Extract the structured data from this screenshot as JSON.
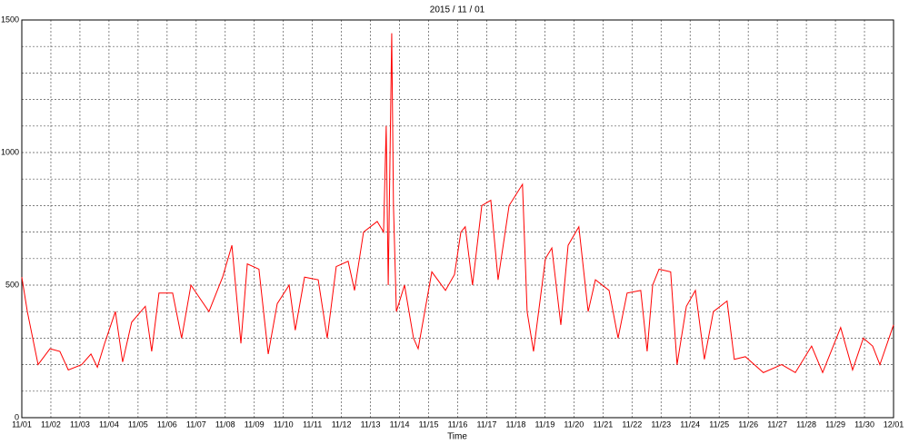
{
  "chart_data": {
    "type": "line",
    "title": "2015 / 11 / 01",
    "x_label": "Time",
    "x": [
      0,
      0.19,
      0.56,
      0.97,
      1.31,
      1.6,
      2.06,
      2.38,
      2.6,
      2.85,
      3.22,
      3.47,
      3.78,
      4.25,
      4.47,
      4.72,
      5.19,
      5.5,
      5.82,
      6.13,
      6.44,
      6.91,
      7.23,
      7.54,
      7.76,
      8.16,
      8.48,
      8.79,
      9.2,
      9.41,
      9.73,
      10.2,
      10.51,
      10.82,
      11.23,
      11.45,
      11.76,
      12.23,
      12.45,
      12.54,
      12.61,
      12.73,
      12.79,
      12.89,
      13.17,
      13.48,
      13.64,
      14.11,
      14.58,
      14.89,
      15.11,
      15.26,
      15.51,
      15.83,
      16.14,
      16.39,
      16.77,
      17.23,
      17.39,
      17.61,
      18.02,
      18.24,
      18.55,
      18.8,
      19.17,
      19.49,
      19.74,
      20.21,
      20.52,
      20.83,
      21.3,
      21.52,
      21.71,
      21.93,
      22.33,
      22.55,
      22.87,
      23.18,
      23.49,
      23.8,
      24.27,
      24.52,
      24.9,
      25.52,
      26.15,
      26.62,
      27.18,
      27.56,
      28.18,
      28.59,
      28.96,
      29.28,
      29.53,
      30
    ],
    "series": [
      {
        "name": "value",
        "color": "#ff0000",
        "values": [
          530,
          400,
          200,
          260,
          250,
          180,
          200,
          240,
          190,
          280,
          400,
          210,
          360,
          420,
          250,
          470,
          470,
          300,
          500,
          450,
          400,
          530,
          650,
          280,
          580,
          560,
          240,
          430,
          500,
          330,
          530,
          520,
          300,
          570,
          590,
          480,
          700,
          740,
          700,
          1100,
          500,
          1450,
          800,
          400,
          500,
          300,
          260,
          550,
          480,
          540,
          700,
          720,
          500,
          800,
          820,
          520,
          800,
          880,
          400,
          250,
          600,
          640,
          350,
          650,
          720,
          400,
          520,
          480,
          300,
          470,
          480,
          250,
          500,
          560,
          550,
          200,
          420,
          480,
          220,
          400,
          440,
          220,
          230,
          170,
          200,
          170,
          270,
          170,
          340,
          180,
          300,
          270,
          200,
          350
        ]
      }
    ],
    "xlim": [
      0,
      30
    ],
    "xticks": [
      {
        "value": 0,
        "label": "11/01"
      },
      {
        "value": 1,
        "label": "11/02"
      },
      {
        "value": 2,
        "label": "11/03"
      },
      {
        "value": 3,
        "label": "11/04"
      },
      {
        "value": 4,
        "label": "11/05"
      },
      {
        "value": 5,
        "label": "11/06"
      },
      {
        "value": 6,
        "label": "11/07"
      },
      {
        "value": 7,
        "label": "11/08"
      },
      {
        "value": 8,
        "label": "11/09"
      },
      {
        "value": 9,
        "label": "11/10"
      },
      {
        "value": 10,
        "label": "11/11"
      },
      {
        "value": 11,
        "label": "11/12"
      },
      {
        "value": 12,
        "label": "11/13"
      },
      {
        "value": 13,
        "label": "11/14"
      },
      {
        "value": 14,
        "label": "11/15"
      },
      {
        "value": 15,
        "label": "11/16"
      },
      {
        "value": 16,
        "label": "11/17"
      },
      {
        "value": 17,
        "label": "11/18"
      },
      {
        "value": 18,
        "label": "11/19"
      },
      {
        "value": 19,
        "label": "11/20"
      },
      {
        "value": 20,
        "label": "11/21"
      },
      {
        "value": 21,
        "label": "11/22"
      },
      {
        "value": 22,
        "label": "11/23"
      },
      {
        "value": 23,
        "label": "11/24"
      },
      {
        "value": 24,
        "label": "11/25"
      },
      {
        "value": 25,
        "label": "11/26"
      },
      {
        "value": 26,
        "label": "11/27"
      },
      {
        "value": 27,
        "label": "11/28"
      },
      {
        "value": 28,
        "label": "11/29"
      },
      {
        "value": 29,
        "label": "11/30"
      },
      {
        "value": 30,
        "label": "12/01"
      }
    ],
    "ylim": [
      0,
      1500
    ],
    "yticks": [
      0,
      500,
      1000,
      1500
    ],
    "yticks_minor": [
      100,
      200,
      300,
      400,
      600,
      700,
      800,
      900,
      1100,
      1200,
      1300,
      1400
    ],
    "grid": true
  }
}
